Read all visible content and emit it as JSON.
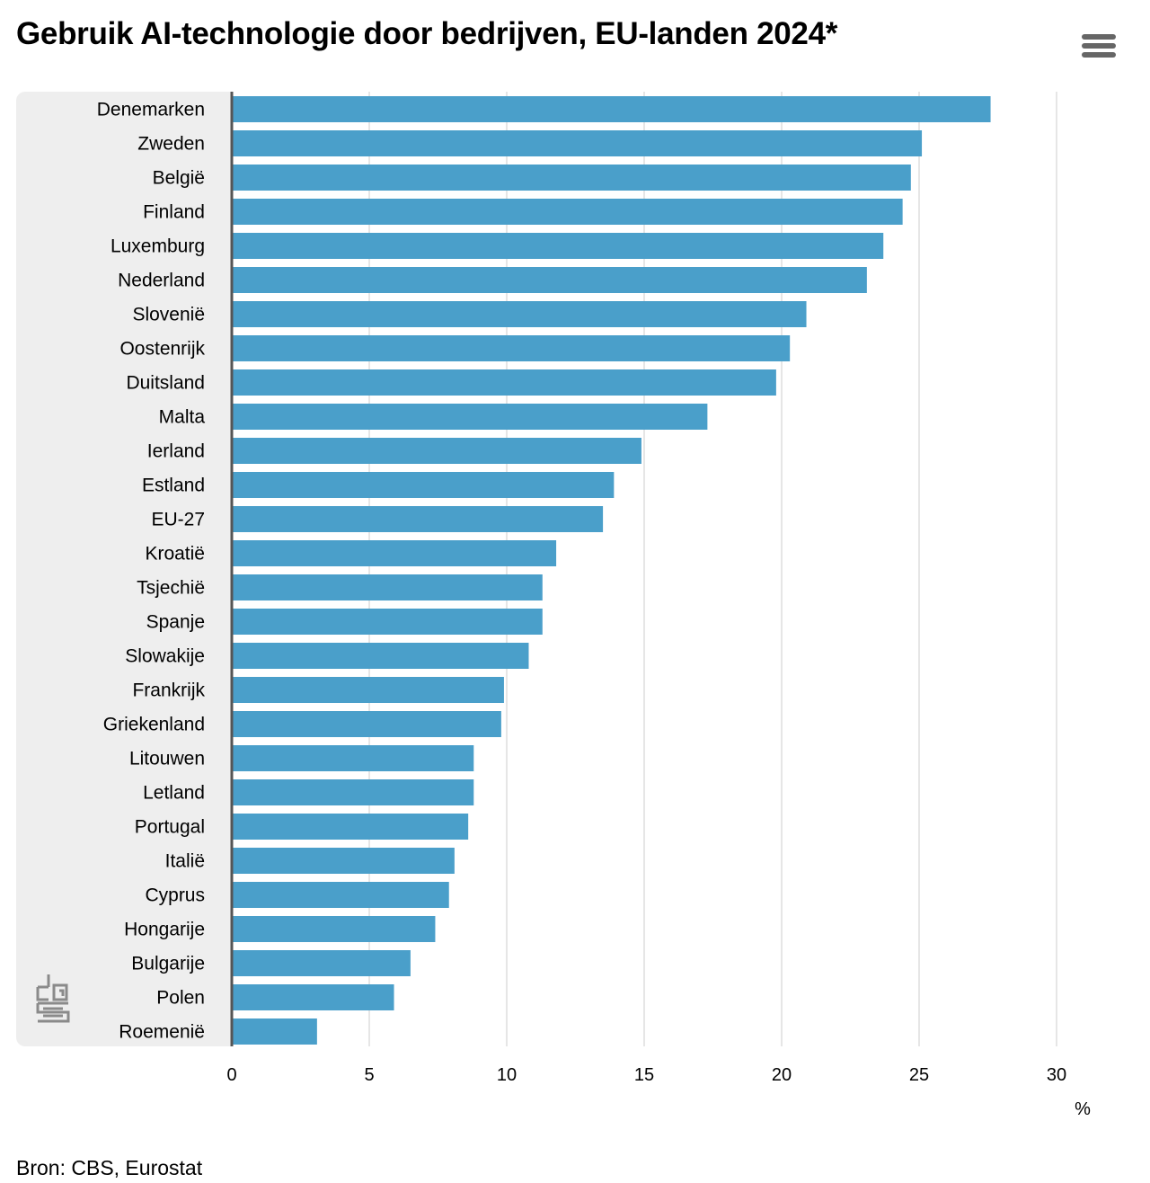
{
  "title": "Gebruik AI-technologie door bedrijven, EU-landen 2024*",
  "source": "Bron: CBS, Eurostat",
  "menu_icon": "hamburger-menu-icon",
  "logo_icon": "cbs-logo-icon",
  "colors": {
    "bar": "#4a9fca",
    "axis": "#555555",
    "grid": "#cccccc",
    "panel": "#eeeeee"
  },
  "chart_data": {
    "type": "bar",
    "orientation": "horizontal",
    "categories": [
      "Denemarken",
      "Zweden",
      "België",
      "Finland",
      "Luxemburg",
      "Nederland",
      "Slovenië",
      "Oostenrijk",
      "Duitsland",
      "Malta",
      "Ierland",
      "Estland",
      "EU-27",
      "Kroatië",
      "Tsjechië",
      "Spanje",
      "Slowakije",
      "Frankrijk",
      "Griekenland",
      "Litouwen",
      "Letland",
      "Portugal",
      "Italië",
      "Cyprus",
      "Hongarije",
      "Bulgarije",
      "Polen",
      "Roemenië"
    ],
    "values": [
      27.6,
      25.1,
      24.7,
      24.4,
      23.7,
      23.1,
      20.9,
      20.3,
      19.8,
      17.3,
      14.9,
      13.9,
      13.5,
      11.8,
      11.3,
      11.3,
      10.8,
      9.9,
      9.8,
      8.8,
      8.8,
      8.6,
      8.1,
      7.9,
      7.4,
      6.5,
      5.9,
      3.1
    ],
    "xlim": [
      0,
      30
    ],
    "xticks": [
      0,
      5,
      10,
      15,
      20,
      25,
      30
    ],
    "xlabel": "%",
    "grid": true
  }
}
